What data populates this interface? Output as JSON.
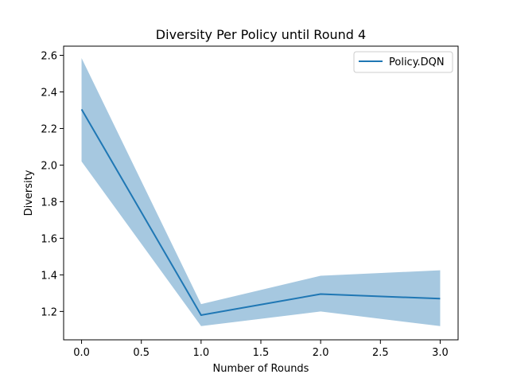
{
  "chart_data": {
    "type": "line",
    "title": "Diversity Per Policy until Round 4",
    "xlabel": "Number of Rounds",
    "ylabel": "Diversity",
    "xlim": [
      -0.15,
      3.15
    ],
    "ylim": [
      1.045,
      2.65
    ],
    "xticks": [
      0.0,
      0.5,
      1.0,
      1.5,
      2.0,
      2.5,
      3.0
    ],
    "xtick_labels": [
      "0.0",
      "0.5",
      "1.0",
      "1.5",
      "2.0",
      "2.5",
      "3.0"
    ],
    "yticks": [
      1.2,
      1.4,
      1.6,
      1.8,
      2.0,
      2.2,
      2.4,
      2.6
    ],
    "ytick_labels": [
      "1.2",
      "1.4",
      "1.6",
      "1.8",
      "2.0",
      "2.2",
      "2.4",
      "2.6"
    ],
    "grid": false,
    "legend_position": "top-right",
    "series": [
      {
        "name": "Policy.DQN",
        "color": "#1f77b4",
        "band_color": "#a6c8e0",
        "x": [
          0,
          1,
          2,
          3
        ],
        "y": [
          2.305,
          1.18,
          1.295,
          1.27
        ],
        "lower": [
          2.02,
          1.12,
          1.2,
          1.12
        ],
        "upper": [
          2.585,
          1.24,
          1.395,
          1.425
        ]
      }
    ]
  }
}
